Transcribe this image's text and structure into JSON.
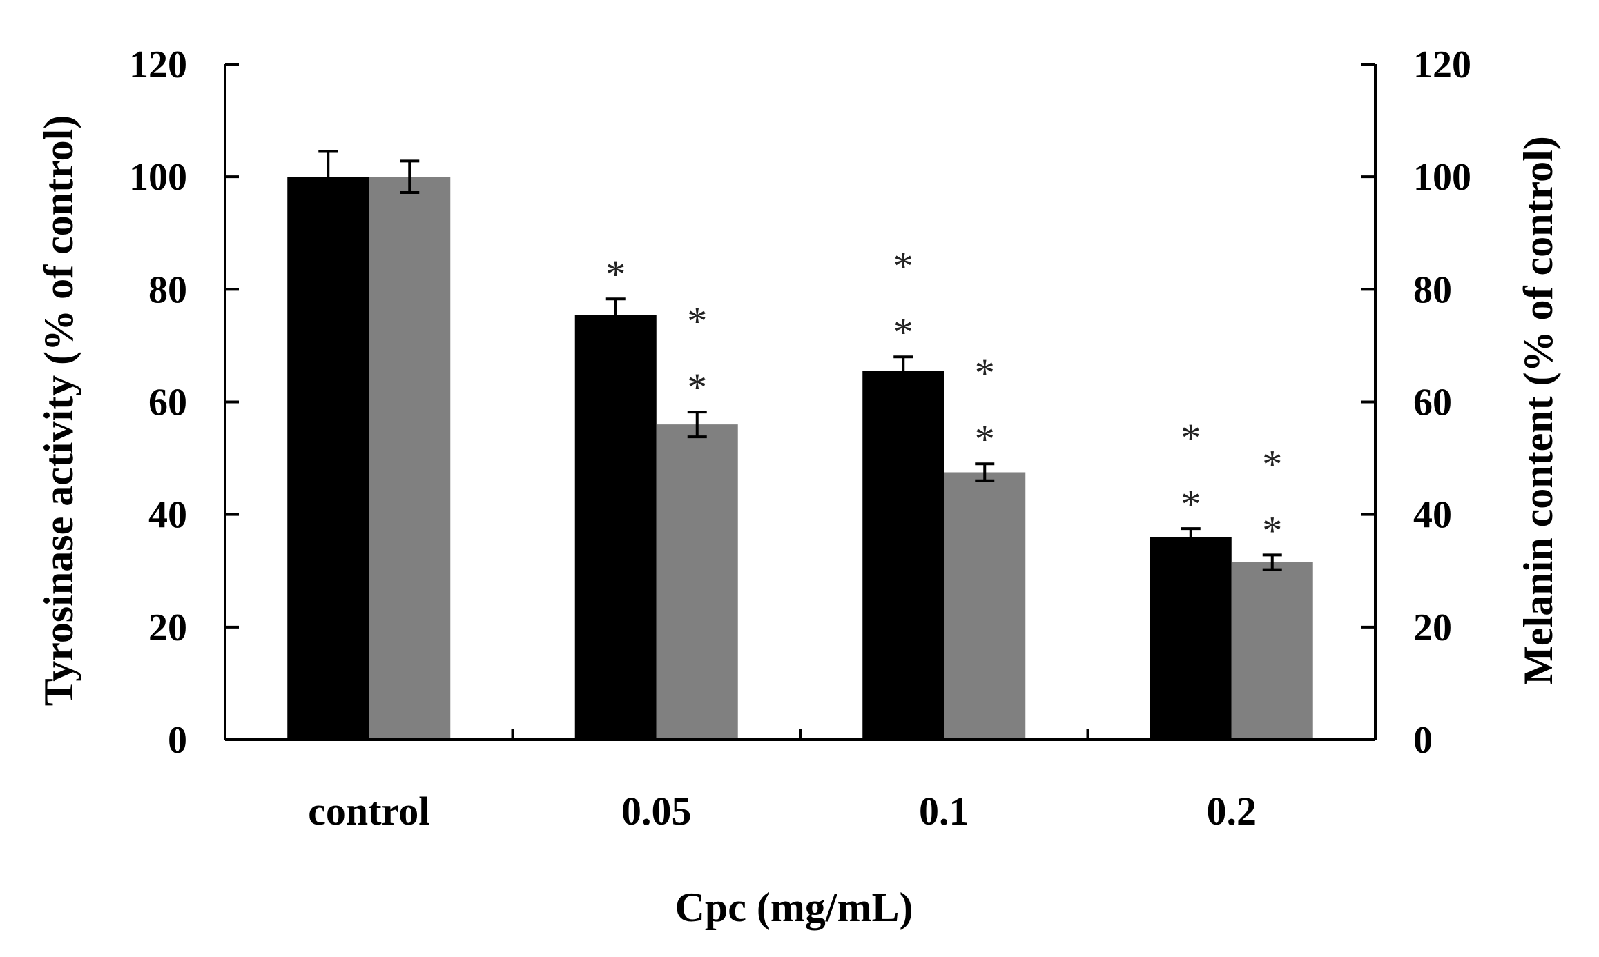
{
  "chart_data": {
    "type": "bar",
    "title": "",
    "xlabel": "Cpc (mg/mL)",
    "ylabel": "Tyrosinase activity (% of control)",
    "y2label": "Melanin content (% of control)",
    "categories": [
      "control",
      "0.05",
      "0.1",
      "0.2"
    ],
    "ylim": [
      0,
      120
    ],
    "y2lim": [
      0,
      120
    ],
    "yticks": [
      "0",
      "20",
      "40",
      "60",
      "80",
      "100",
      "120"
    ],
    "y2ticks": [
      "0",
      "20",
      "40",
      "60",
      "80",
      "100",
      "120"
    ],
    "grid": false,
    "series": [
      {
        "name": "Tyrosinase activity",
        "axis": "left",
        "color": "#000000",
        "values": [
          100,
          75.5,
          65.5,
          36
        ],
        "errors": [
          4.5,
          2.8,
          2.5,
          1.5
        ],
        "significance": [
          "",
          "*",
          "**",
          "**"
        ]
      },
      {
        "name": "Melanin content",
        "axis": "right",
        "color": "#808080",
        "values": [
          100,
          56,
          47.5,
          31.5
        ],
        "errors": [
          2.8,
          2.2,
          1.5,
          1.3
        ],
        "significance": [
          "",
          "**",
          "**",
          "**"
        ]
      }
    ]
  }
}
